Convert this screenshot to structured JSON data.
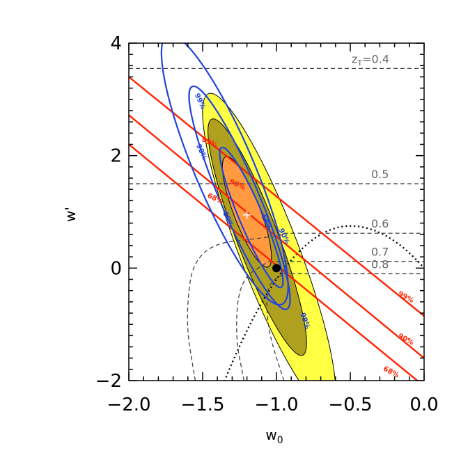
{
  "chart_data": {
    "type": "contour",
    "title": "",
    "xlabel": "w",
    "xlabel_subscript": "0",
    "ylabel": "w'",
    "xlim": [
      -2.0,
      0.0
    ],
    "ylim": [
      -2.0,
      4.0
    ],
    "x_ticks": [
      "−2.0",
      "−1.5",
      "−1.0",
      "−0.5",
      "0.0"
    ],
    "y_ticks": [
      "−2",
      "0",
      "2",
      "4"
    ],
    "colors": {
      "yellow_fill": "#ffff44",
      "olive_fill": "#b0a020",
      "orange_fill": "#ff9a40",
      "red_lines": "#ff2200",
      "blue_contours": "#2244dd",
      "dashed": "#555555",
      "axes": "#000000"
    },
    "transition_redshift_lines": [
      {
        "label": "z",
        "sub": "T",
        "suffix": "=0.4",
        "y": 3.55
      },
      {
        "label": "0.5",
        "y": 1.5
      },
      {
        "label": "0.6",
        "y": 0.62
      },
      {
        "label": "0.7",
        "y": 0.12
      },
      {
        "label": "0.8",
        "y": -0.1
      }
    ],
    "red_confidence_lines": [
      {
        "label": "99%",
        "x0": -2.0,
        "y0": 3.4,
        "x1": 0.0,
        "y1": -0.85
      },
      {
        "label": "90%",
        "x0": -2.0,
        "y0": 2.72,
        "x1": 0.0,
        "y1": -1.6
      },
      {
        "label": "68%",
        "x0": -2.0,
        "y0": 2.2,
        "x1": 0.0,
        "y1": -2.1
      }
    ],
    "filled_contours": [
      {
        "label": "99%",
        "cx": -1.05,
        "cy": 0.3,
        "rx": 0.2,
        "ry": 3.0,
        "rotate": -21
      },
      {
        "label": "90%",
        "cx": -1.13,
        "cy": 0.55,
        "rx": 0.14,
        "ry": 2.25,
        "rotate": -21
      },
      {
        "label": "68%",
        "cx": -1.2,
        "cy": 1.0,
        "rx": 0.09,
        "ry": 1.05,
        "rotate": -21
      }
    ],
    "blue_contours": [
      {
        "label": "99%",
        "cx": -1.35,
        "cy": 1.75,
        "rx": 0.2,
        "ry": 2.6,
        "rotate": -23
      },
      {
        "label": "90%",
        "cx": -1.25,
        "cy": 1.25,
        "rx": 0.13,
        "ry": 2.15,
        "rotate": -23
      },
      {
        "label": "68%",
        "cx": -1.17,
        "cy": 0.9,
        "rx": 0.08,
        "ry": 1.35,
        "rotate": -23
      }
    ],
    "best_fit": {
      "x": -1.2,
      "y": 0.95,
      "marker": "+"
    },
    "lcdm_point": {
      "x": -1.0,
      "y": 0.0
    }
  }
}
